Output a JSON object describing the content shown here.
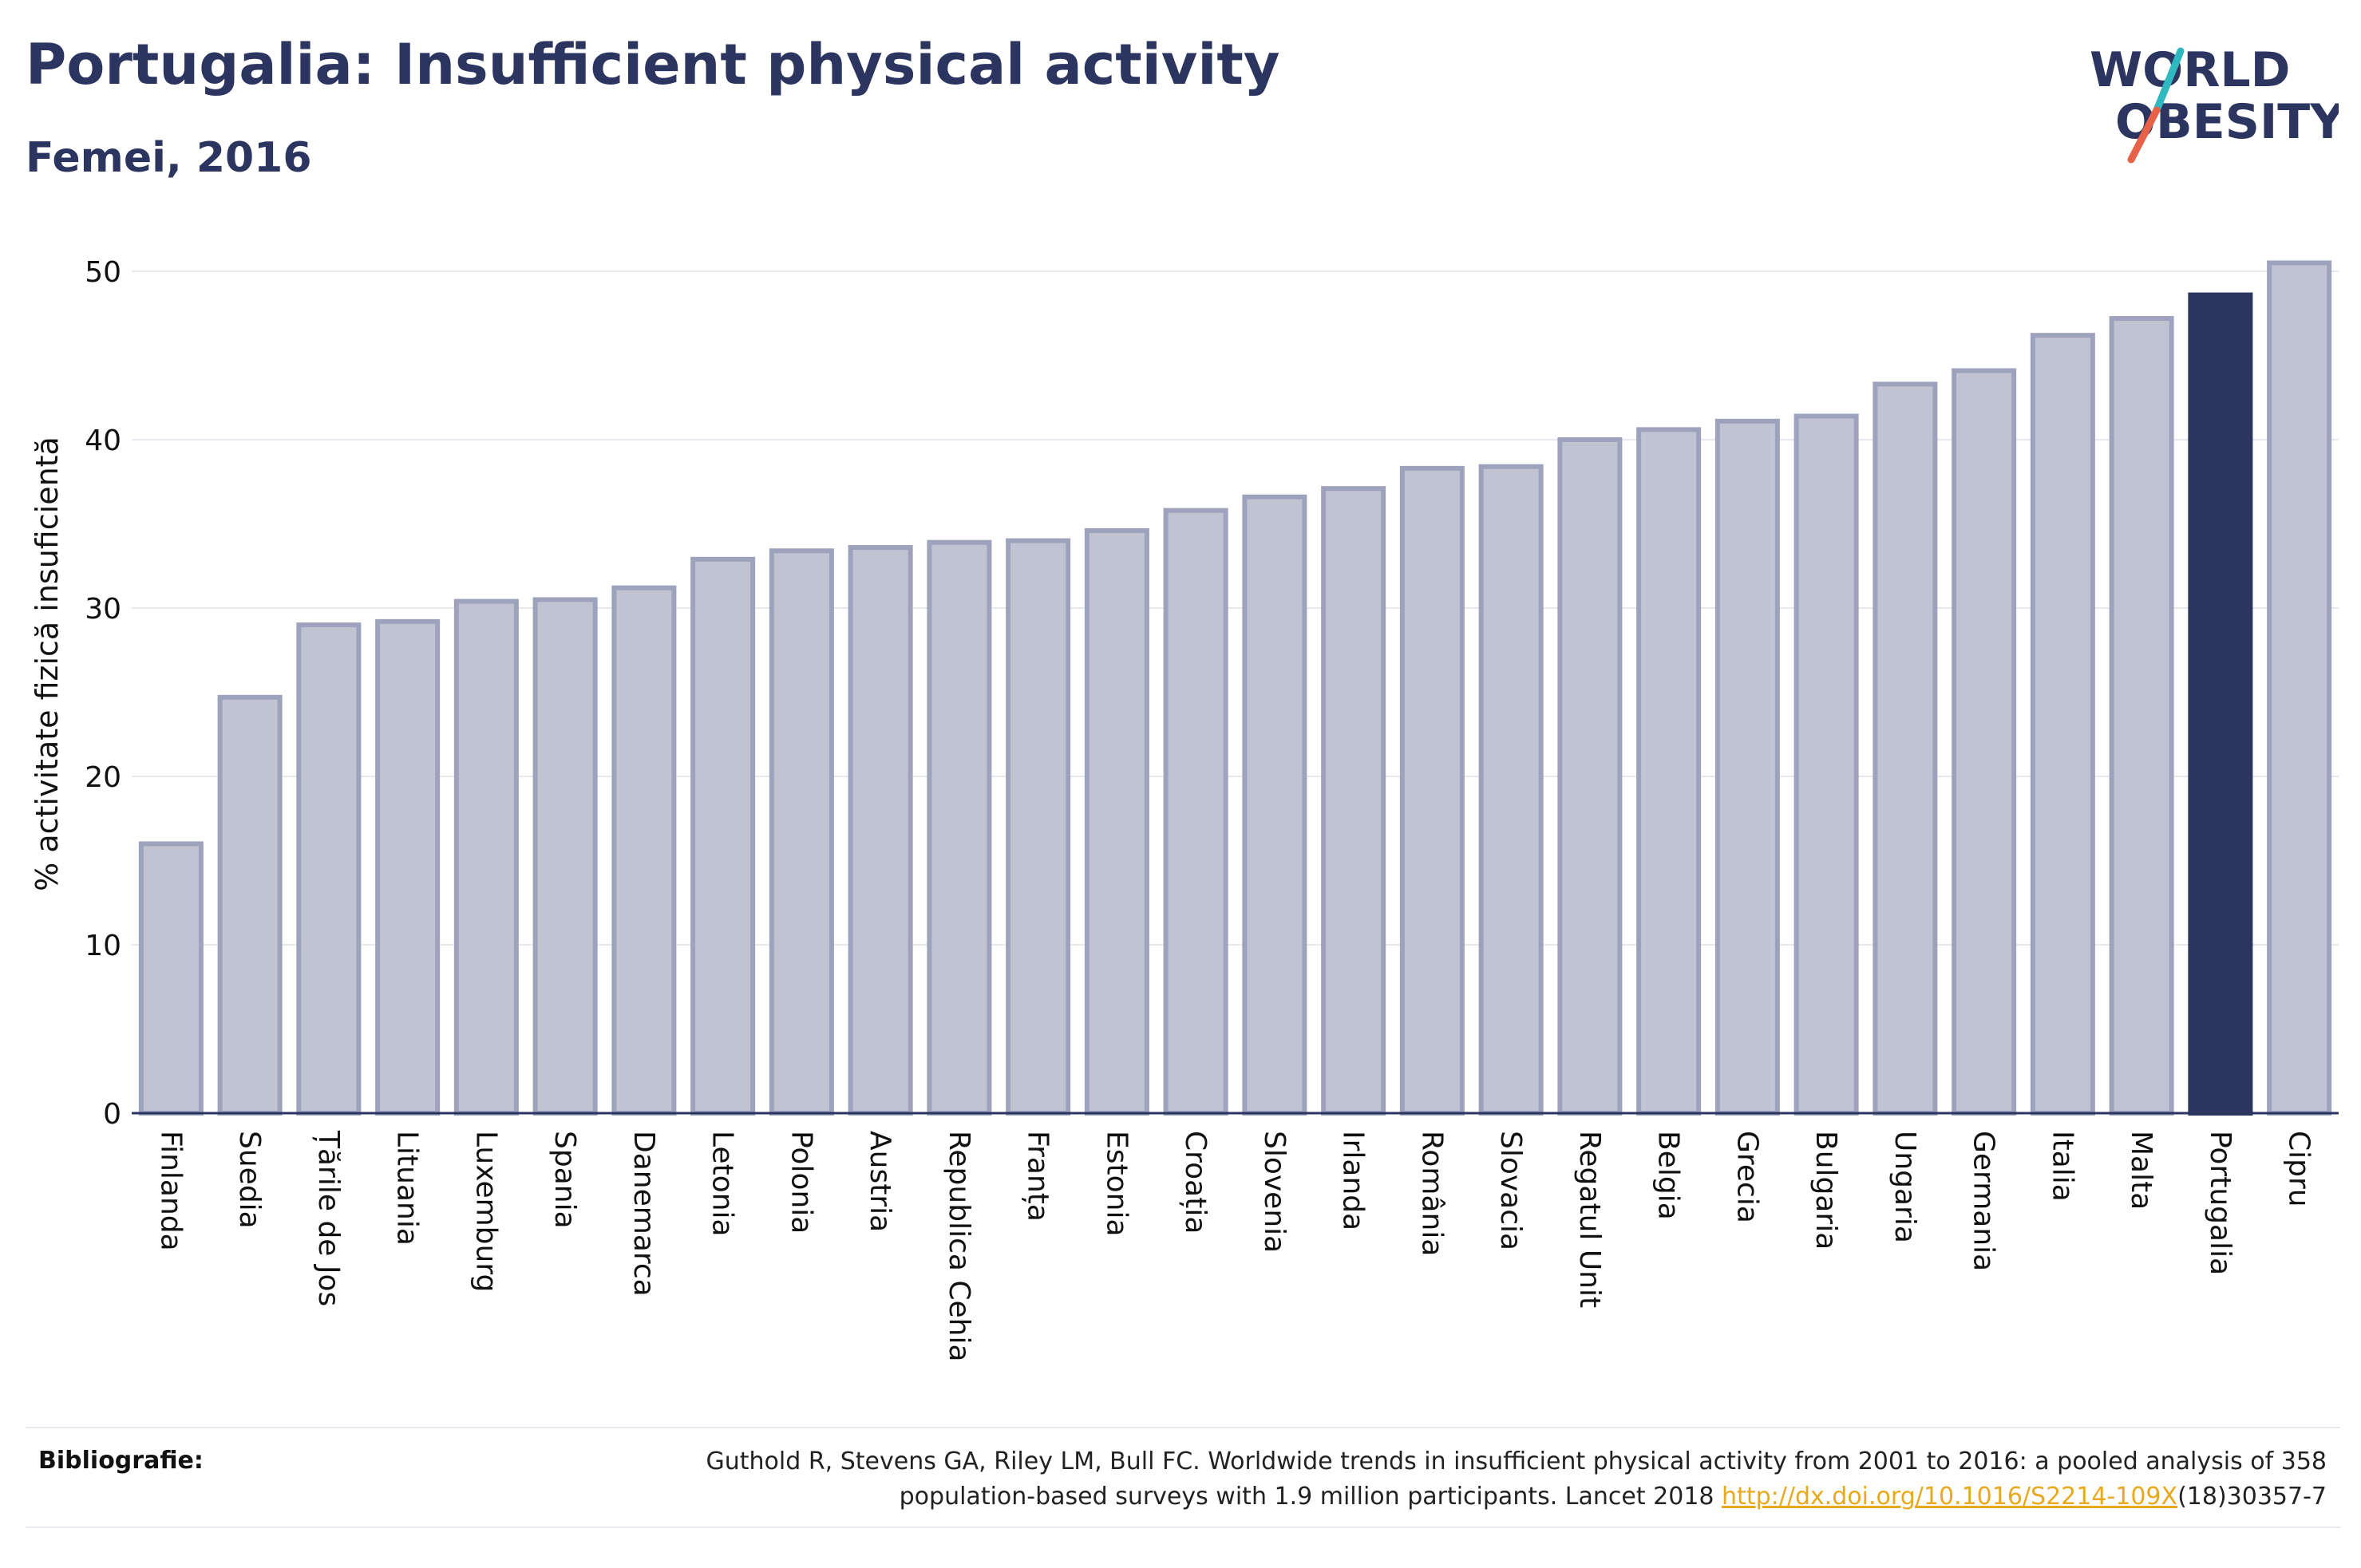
{
  "header": {
    "title": "Portugalia: Insufficient physical activity",
    "subtitle": "Femei, 2016"
  },
  "logo": {
    "line1": "WORLD",
    "line2": "OBESITY",
    "accent_colors": [
      "#2fb8c0",
      "#e8624a"
    ]
  },
  "chart_data": {
    "type": "bar",
    "title": "Portugalia: Insufficient physical activity",
    "subtitle": "Femei, 2016",
    "xlabel": "",
    "ylabel": "% activitate fizică insuficientă",
    "ylim": [
      0,
      52
    ],
    "yticks": [
      0,
      10,
      20,
      30,
      40,
      50
    ],
    "grid": true,
    "categories": [
      "Finlanda",
      "Suedia",
      "Țările de Jos",
      "Lituania",
      "Luxemburg",
      "Spania",
      "Danemarca",
      "Letonia",
      "Polonia",
      "Austria",
      "Republica Cehia",
      "Franța",
      "Estonia",
      "Croația",
      "Slovenia",
      "Irlanda",
      "România",
      "Slovacia",
      "Regatul Unit",
      "Belgia",
      "Grecia",
      "Bulgaria",
      "Ungaria",
      "Germania",
      "Italia",
      "Malta",
      "Portugalia",
      "Cipru"
    ],
    "values": [
      16.0,
      24.7,
      29.0,
      29.2,
      30.4,
      30.5,
      31.2,
      32.9,
      33.4,
      33.6,
      33.9,
      34.0,
      34.6,
      35.8,
      36.6,
      37.1,
      38.3,
      38.4,
      40.0,
      40.6,
      41.1,
      41.4,
      43.3,
      44.1,
      46.2,
      47.2,
      48.6,
      50.5
    ],
    "highlight": "Portugalia",
    "colors": {
      "bar": "#c0c3d1",
      "bar_border": "#9ea3bd",
      "highlight": "#2c3560",
      "grid": "#e6e8ee",
      "axis": "#2c3560"
    }
  },
  "footer": {
    "label": "Bibliografie:",
    "citation_line1": "Guthold R, Stevens GA, Riley LM, Bull FC. Worldwide trends in insufficient physical activity from 2001 to 2016: a pooled analysis of 358",
    "citation_line2_pre": "population-based surveys with 1.9 million participants. Lancet 2018 ",
    "citation_link": "http://dx.doi.org/10.1016/S2214-109X",
    "citation_line2_post": "(18)30357-7"
  }
}
